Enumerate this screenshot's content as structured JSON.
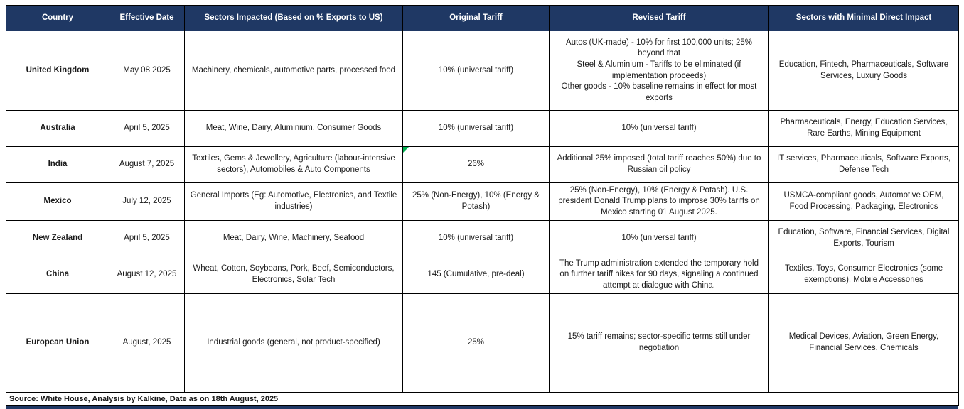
{
  "table": {
    "columns": [
      "Country",
      "Effective Date",
      "Sectors Impacted (Based on % Exports to US)",
      "Original Tariff",
      "Revised Tariff",
      "Sectors with Minimal Direct Impact"
    ],
    "rows": [
      {
        "country": "United Kingdom",
        "effective_date": "May 08 2025",
        "sectors_impacted": "Machinery, chemicals, automotive parts, processed food",
        "original_tariff": "10% (universal tariff)",
        "revised_tariff": "Autos (UK-made) - 10% for first 100,000 units; 25% beyond that\nSteel & Aluminium - Tariffs to be eliminated (if implementation proceeds)\nOther goods - 10% baseline remains in effect for most exports",
        "minimal_impact": "Education, Fintech, Pharmaceuticals, Software Services, Luxury Goods",
        "has_flag_marker": false
      },
      {
        "country": "Australia",
        "effective_date": "April 5, 2025",
        "sectors_impacted": "Meat, Wine, Dairy, Aluminium, Consumer Goods",
        "original_tariff": "10% (universal tariff)",
        "revised_tariff": "10% (universal tariff)",
        "minimal_impact": "Pharmaceuticals, Energy, Education Services, Rare Earths, Mining Equipment",
        "has_flag_marker": false
      },
      {
        "country": "India",
        "effective_date": "August 7, 2025",
        "sectors_impacted": "Textiles, Gems & Jewellery, Agriculture (labour-intensive sectors), Automobiles & Auto Components",
        "original_tariff": "26%",
        "revised_tariff": "Additional 25% imposed (total tariff reaches 50%) due to Russian oil policy",
        "minimal_impact": "IT services, Pharmaceuticals, Software Exports, Defense Tech",
        "has_flag_marker": true
      },
      {
        "country": "Mexico",
        "effective_date": "July 12, 2025",
        "sectors_impacted": "General Imports (Eg: Automotive, Electronics, and Textile industries)",
        "original_tariff": "25% (Non-Energy), 10% (Energy & Potash)",
        "revised_tariff": "25% (Non-Energy), 10% (Energy & Potash). U.S. president Donald Trump plans to improse 30% tariffs on Mexico starting 01 August 2025.",
        "minimal_impact": "USMCA-compliant goods, Automotive OEM, Food Processing, Packaging, Electronics",
        "has_flag_marker": false
      },
      {
        "country": "New Zealand",
        "effective_date": "April 5, 2025",
        "sectors_impacted": "Meat, Dairy, Wine, Machinery, Seafood",
        "original_tariff": "10% (universal tariff)",
        "revised_tariff": "10% (universal tariff)",
        "minimal_impact": "Education, Software, Financial Services, Digital Exports, Tourism",
        "has_flag_marker": false
      },
      {
        "country": "China",
        "effective_date": "August 12, 2025",
        "sectors_impacted": "Wheat, Cotton, Soybeans, Pork, Beef, Semiconductors, Electronics, Solar Tech",
        "original_tariff": "145 (Cumulative, pre-deal)",
        "revised_tariff": "The Trump administration extended the temporary hold on further tariff hikes for 90 days, signaling a continued attempt at dialogue with China.",
        "minimal_impact": "Textiles, Toys, Consumer Electronics (some exemptions), Mobile Accessories",
        "has_flag_marker": false
      },
      {
        "country": "European Union",
        "effective_date": "August, 2025",
        "sectors_impacted": "Industrial goods (general, not product-specified)",
        "original_tariff": "25%",
        "revised_tariff": "15% tariff remains; sector-specific terms still under negotiation",
        "minimal_impact": "Medical Devices, Aviation, Green Energy, Financial Services, Chemicals",
        "has_flag_marker": false
      }
    ],
    "source_note": "Source: White House, Analysis by Kalkine, Date as on 18th August, 2025"
  },
  "colors": {
    "header_bg": "#1f3864",
    "border": "#000000",
    "body_text": "#1a1a1a",
    "flag_green": "#00b050"
  }
}
